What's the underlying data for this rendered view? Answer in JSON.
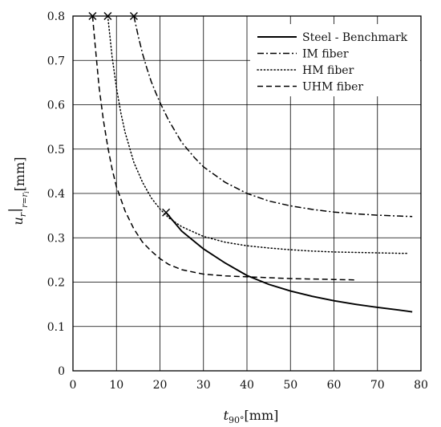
{
  "chart_data": {
    "type": "line",
    "title": "",
    "xlabel": "t_90°[mm]",
    "ylabel": "u_r|_{r=r_i}[mm]",
    "xlabel_parts": {
      "main": "t",
      "sub": "90°",
      "unit": "[mm]"
    },
    "ylabel_parts": {
      "main": "u",
      "sub1": "r",
      "sub2": "r=r",
      "sub3": "i",
      "unit": "[mm]"
    },
    "xlim": [
      0,
      80
    ],
    "ylim": [
      0,
      0.8
    ],
    "xticks": [
      0,
      10,
      20,
      30,
      40,
      50,
      60,
      70,
      80
    ],
    "yticks": [
      0,
      0.1,
      0.2,
      0.3,
      0.4,
      0.5,
      0.6,
      0.7,
      0.8
    ],
    "grid": true,
    "legend_position": "top-right",
    "series": [
      {
        "name": "Steel - Benchmark",
        "style": "solid",
        "start_marker": "x",
        "x": [
          21.4,
          25,
          30,
          35,
          40,
          45,
          50,
          55,
          60,
          65,
          70,
          75,
          78
        ],
        "y": [
          0.357,
          0.315,
          0.275,
          0.243,
          0.215,
          0.195,
          0.18,
          0.168,
          0.158,
          0.15,
          0.143,
          0.137,
          0.133
        ]
      },
      {
        "name": "IM fiber",
        "style": "dashdot",
        "start_marker": "x",
        "x": [
          14,
          15,
          16,
          17,
          18,
          19,
          20,
          22,
          25,
          28,
          30,
          35,
          40,
          45,
          50,
          55,
          60,
          65,
          70,
          75,
          78
        ],
        "y": [
          0.8,
          0.755,
          0.715,
          0.682,
          0.652,
          0.628,
          0.605,
          0.565,
          0.515,
          0.48,
          0.46,
          0.425,
          0.4,
          0.383,
          0.372,
          0.364,
          0.358,
          0.354,
          0.351,
          0.349,
          0.348
        ]
      },
      {
        "name": "HM fiber",
        "style": "dotted",
        "start_marker": "x",
        "x": [
          8,
          9,
          10,
          11,
          12,
          14,
          16,
          18,
          20,
          22,
          25,
          30,
          35,
          40,
          45,
          50,
          55,
          60,
          65,
          70,
          75,
          77
        ],
        "y": [
          0.8,
          0.708,
          0.638,
          0.582,
          0.537,
          0.47,
          0.425,
          0.39,
          0.365,
          0.345,
          0.325,
          0.303,
          0.29,
          0.282,
          0.277,
          0.273,
          0.27,
          0.268,
          0.267,
          0.266,
          0.265,
          0.265
        ]
      },
      {
        "name": "UHM fiber",
        "style": "dashed",
        "start_marker": "x",
        "x": [
          4.5,
          5,
          6,
          7,
          8,
          9,
          10,
          12,
          14,
          16,
          18,
          20,
          22,
          25,
          30,
          35,
          40,
          45,
          50,
          55,
          60,
          65
        ],
        "y": [
          0.8,
          0.745,
          0.64,
          0.565,
          0.505,
          0.455,
          0.415,
          0.36,
          0.32,
          0.29,
          0.27,
          0.253,
          0.24,
          0.228,
          0.218,
          0.214,
          0.212,
          0.21,
          0.208,
          0.207,
          0.206,
          0.205
        ]
      }
    ]
  }
}
